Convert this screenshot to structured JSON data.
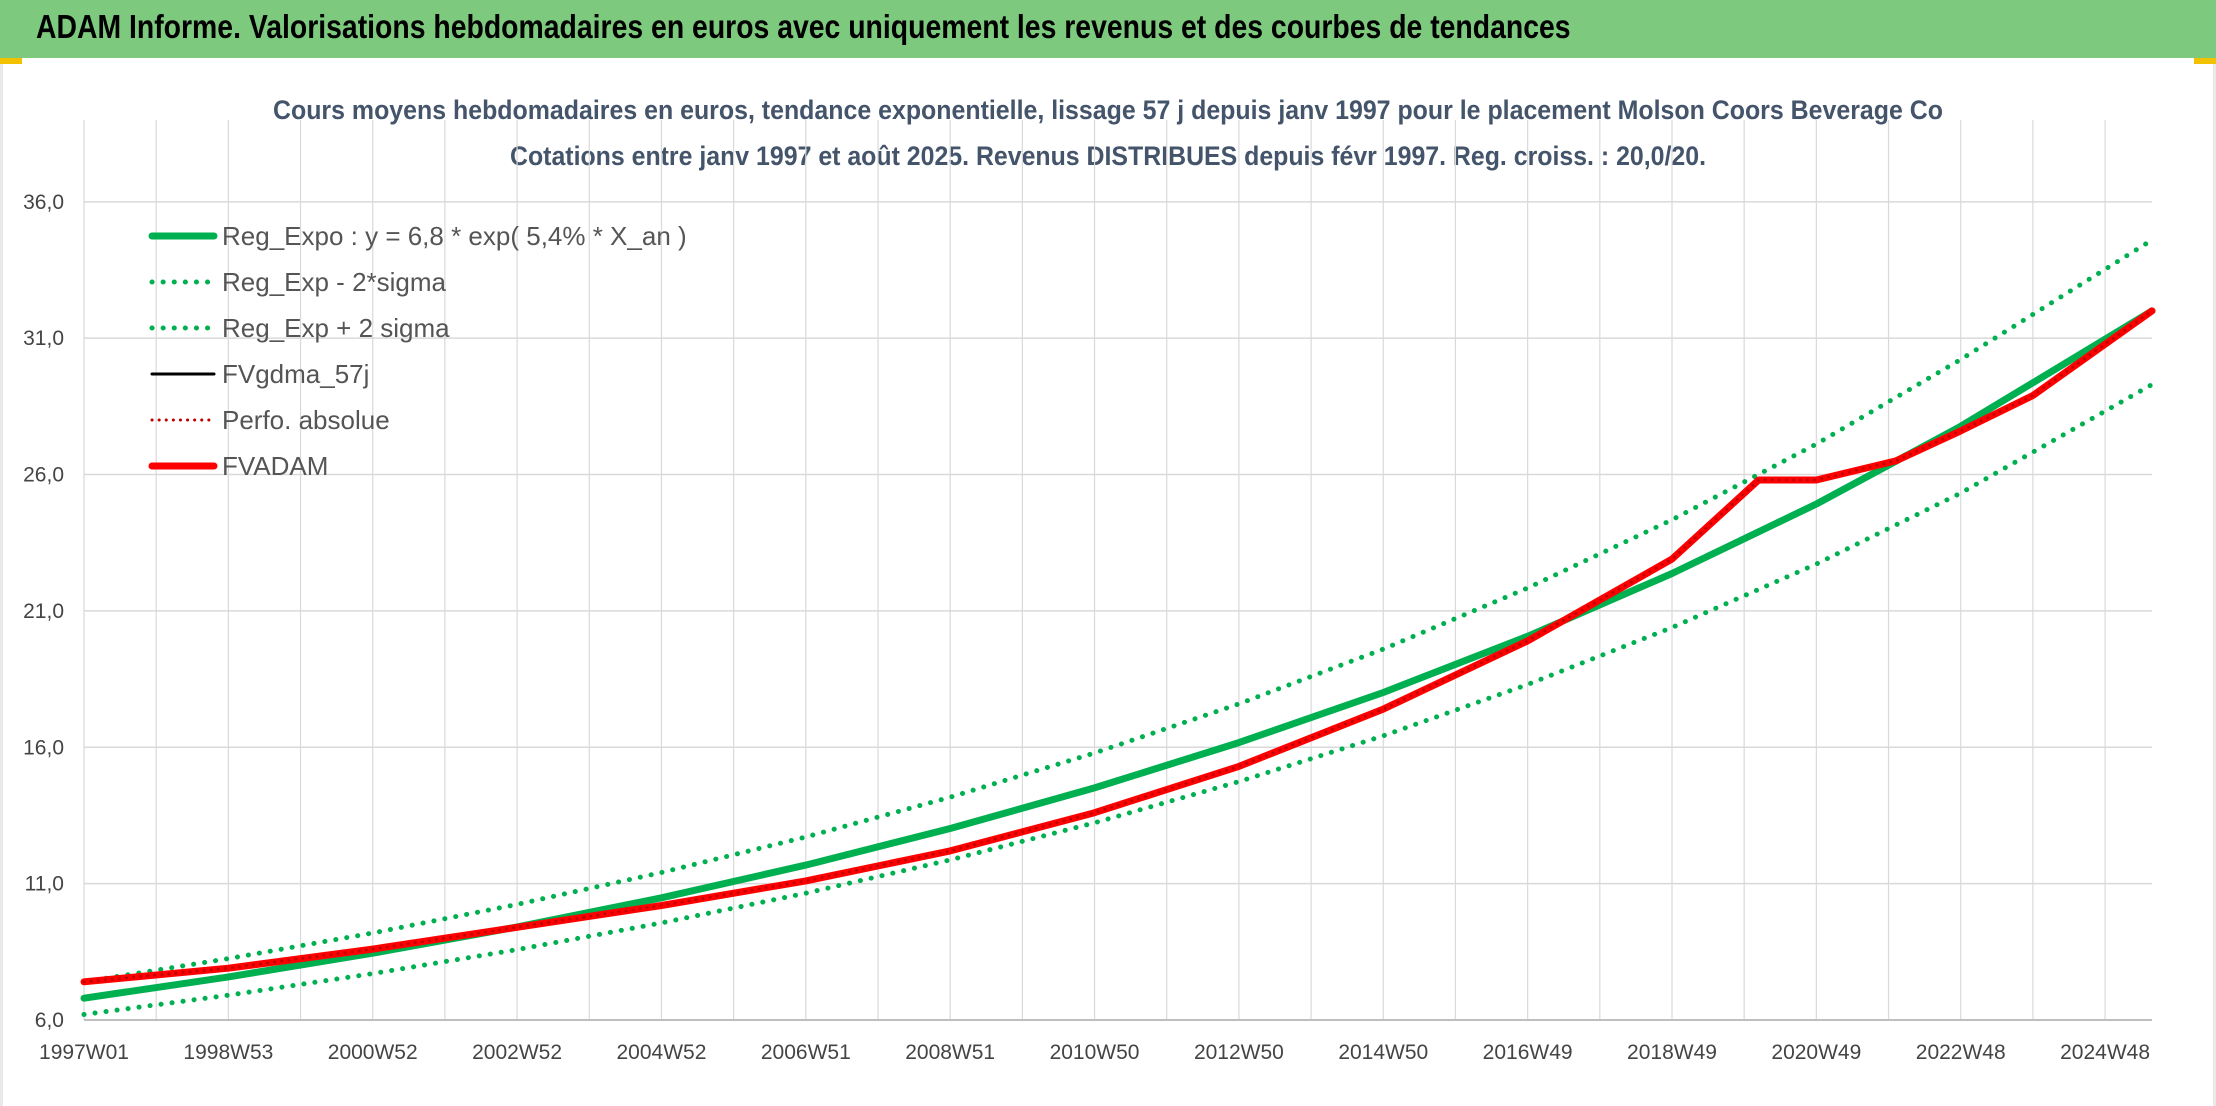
{
  "header": {
    "title": "ADAM Informe. Valorisations hebdomadaires en euros avec uniquement les revenus et des courbes de tendances"
  },
  "colors": {
    "banner": "#7dc97d",
    "reg": "#00b050",
    "fvgdma": "#000000",
    "fvadam": "#ff0000",
    "perfo": "#c00000",
    "grid": "#d9d9d9"
  },
  "chart_data": {
    "type": "line",
    "title_line1": "Cours moyens hebdomadaires en euros, tendance exponentielle, lissage 57 j depuis janv 1997 pour le placement Molson Coors Beverage Co",
    "title_line2": "Cotations entre janv 1997 et août 2025. Revenus DISTRIBUES depuis févr 1997. Reg. croiss. : 20,0/20.",
    "x_tick_labels": [
      "1997W01",
      "1998W53",
      "2000W52",
      "2002W52",
      "2004W52",
      "2006W51",
      "2008W51",
      "2010W50",
      "2012W50",
      "2014W50",
      "2016W49",
      "2018W49",
      "2020W49",
      "2022W48",
      "2024W48"
    ],
    "x_range_years": [
      1997.0,
      2025.65
    ],
    "y_tick_labels": [
      "6,0",
      "11,0",
      "16,0",
      "21,0",
      "26,0",
      "31,0",
      "36,0"
    ],
    "y_ticks": [
      6,
      11,
      16,
      21,
      26,
      31,
      36
    ],
    "ylim": [
      6,
      39
    ],
    "grid": true,
    "legend_position": "top-left",
    "series": [
      {
        "name": "Reg_Expo : y = 6,8 * exp( 5,4% *  X_an )",
        "style": "solid",
        "color": "#00b050",
        "x": [
          1997,
          1999,
          2001,
          2003,
          2005,
          2007,
          2009,
          2011,
          2013,
          2015,
          2017,
          2019,
          2021,
          2023,
          2025.65
        ],
        "y": [
          6.8,
          7.58,
          8.45,
          9.41,
          10.48,
          11.68,
          13.02,
          14.51,
          16.17,
          18.01,
          20.07,
          22.37,
          24.92,
          27.77,
          32.0
        ]
      },
      {
        "name": "Reg_Exp - 2*sigma",
        "style": "dotted",
        "color": "#00b050",
        "x": [
          1997,
          1999,
          2001,
          2003,
          2005,
          2007,
          2009,
          2011,
          2013,
          2015,
          2017,
          2019,
          2021,
          2023,
          2025.65
        ],
        "y": [
          6.2,
          6.91,
          7.7,
          8.58,
          9.56,
          10.65,
          11.87,
          13.23,
          14.74,
          16.42,
          18.3,
          20.39,
          22.72,
          25.32,
          29.3
        ]
      },
      {
        "name": "Reg_Exp + 2 sigma",
        "style": "dotted",
        "color": "#00b050",
        "x": [
          1997,
          1999,
          2001,
          2003,
          2005,
          2007,
          2009,
          2011,
          2013,
          2015,
          2017,
          2019,
          2021,
          2023,
          2025.65
        ],
        "y": [
          7.4,
          8.25,
          9.19,
          10.24,
          11.41,
          12.71,
          14.17,
          15.79,
          17.59,
          19.6,
          21.84,
          24.34,
          27.12,
          30.22,
          34.6
        ]
      },
      {
        "name": "FVgdma_57j",
        "style": "solid",
        "color": "#000000",
        "x": [
          1997,
          1999,
          2001,
          2003,
          2005,
          2007,
          2009,
          2011,
          2013,
          2015,
          2017,
          2019,
          2020.2,
          2021,
          2022.1,
          2023,
          2024,
          2025.65
        ],
        "y": [
          7.4,
          7.9,
          8.6,
          9.4,
          10.2,
          11.1,
          12.2,
          13.6,
          15.3,
          17.4,
          19.9,
          22.9,
          25.8,
          25.8,
          26.5,
          27.6,
          28.9,
          32.0
        ]
      },
      {
        "name": "Perfo. absolue",
        "style": "dotted",
        "color": "#c00000",
        "x": [
          1997,
          1999,
          2001,
          2003,
          2005,
          2007,
          2009,
          2011,
          2013,
          2015,
          2017,
          2019,
          2020.2,
          2021,
          2022.1,
          2023,
          2024,
          2025.65
        ],
        "y": [
          7.4,
          7.9,
          8.6,
          9.4,
          10.2,
          11.1,
          12.2,
          13.6,
          15.3,
          17.4,
          19.9,
          22.9,
          25.8,
          25.8,
          26.5,
          27.6,
          28.9,
          32.0
        ]
      },
      {
        "name": "FVADAM",
        "style": "solid",
        "color": "#ff0000",
        "x": [
          1997,
          1999,
          2001,
          2003,
          2005,
          2007,
          2009,
          2011,
          2013,
          2015,
          2017,
          2019,
          2020.2,
          2021,
          2022.1,
          2023,
          2024,
          2025.65
        ],
        "y": [
          7.4,
          7.9,
          8.6,
          9.4,
          10.2,
          11.1,
          12.2,
          13.6,
          15.3,
          17.4,
          19.9,
          22.9,
          25.8,
          25.8,
          26.5,
          27.6,
          28.9,
          32.0
        ]
      }
    ]
  }
}
